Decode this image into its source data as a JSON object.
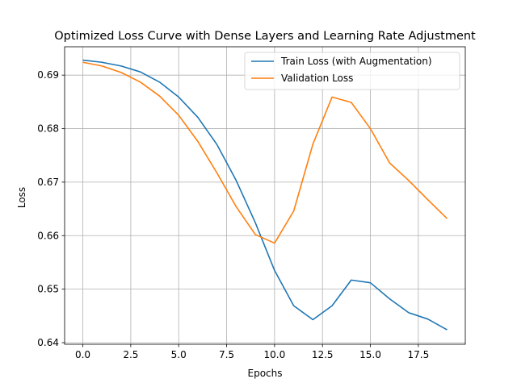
{
  "chart_data": {
    "type": "line",
    "title": "Optimized Loss Curve with Dense Layers and Learning Rate Adjustment",
    "xlabel": "Epochs",
    "ylabel": "Loss",
    "xlim": [
      -0.95,
      19.95
    ],
    "ylim": [
      0.6397,
      0.6953
    ],
    "xticks": [
      0.0,
      2.5,
      5.0,
      7.5,
      10.0,
      12.5,
      15.0,
      17.5
    ],
    "xtick_labels": [
      "0.0",
      "2.5",
      "5.0",
      "7.5",
      "10.0",
      "12.5",
      "15.0",
      "17.5"
    ],
    "yticks": [
      0.64,
      0.65,
      0.66,
      0.67,
      0.68,
      0.69
    ],
    "ytick_labels": [
      "0.64",
      "0.65",
      "0.66",
      "0.67",
      "0.68",
      "0.69"
    ],
    "grid": true,
    "legend_position": "top-right",
    "x": [
      0,
      1,
      2,
      3,
      4,
      5,
      6,
      7,
      8,
      9,
      10,
      11,
      12,
      13,
      14,
      15,
      16,
      17,
      18,
      19
    ],
    "series": [
      {
        "name": "Train Loss (with Augmentation)",
        "color": "#1f77b4",
        "values": [
          0.6928,
          0.6924,
          0.6917,
          0.6906,
          0.6887,
          0.6859,
          0.6821,
          0.677,
          0.6703,
          0.6624,
          0.6535,
          0.6469,
          0.6443,
          0.6469,
          0.6517,
          0.6512,
          0.6482,
          0.6456,
          0.6444,
          0.6424
        ]
      },
      {
        "name": "Validation Loss",
        "color": "#ff7f0e",
        "values": [
          0.6924,
          0.6917,
          0.6905,
          0.6887,
          0.6861,
          0.6825,
          0.6776,
          0.6717,
          0.6654,
          0.6602,
          0.6586,
          0.6646,
          0.6771,
          0.6859,
          0.6849,
          0.68,
          0.6736,
          0.6703,
          0.6667,
          0.6632
        ]
      }
    ]
  }
}
